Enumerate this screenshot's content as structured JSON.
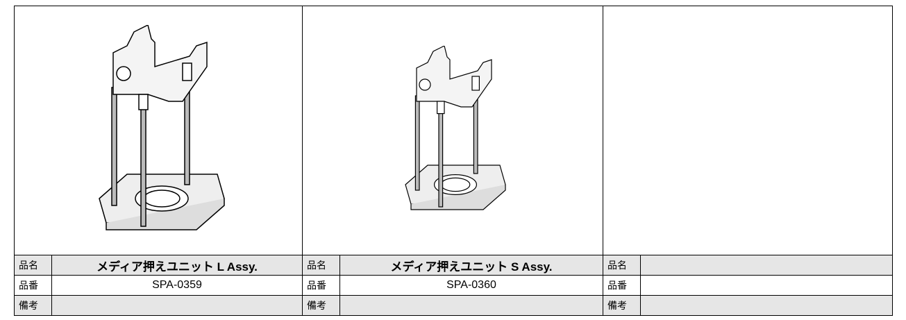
{
  "parts": [
    {
      "name_label": "品名",
      "name": "メディア押えユニット L Assy.",
      "number_label": "品番",
      "number": "SPA-0359",
      "remarks_label": "備考"
    },
    {
      "name_label": "品名",
      "name": "メディア押えユニット S Assy.",
      "number_label": "品番",
      "number": "SPA-0360",
      "remarks_label": "備考"
    },
    {
      "name_label": "品名",
      "number_label": "品番",
      "remarks_label": "備考"
    }
  ]
}
